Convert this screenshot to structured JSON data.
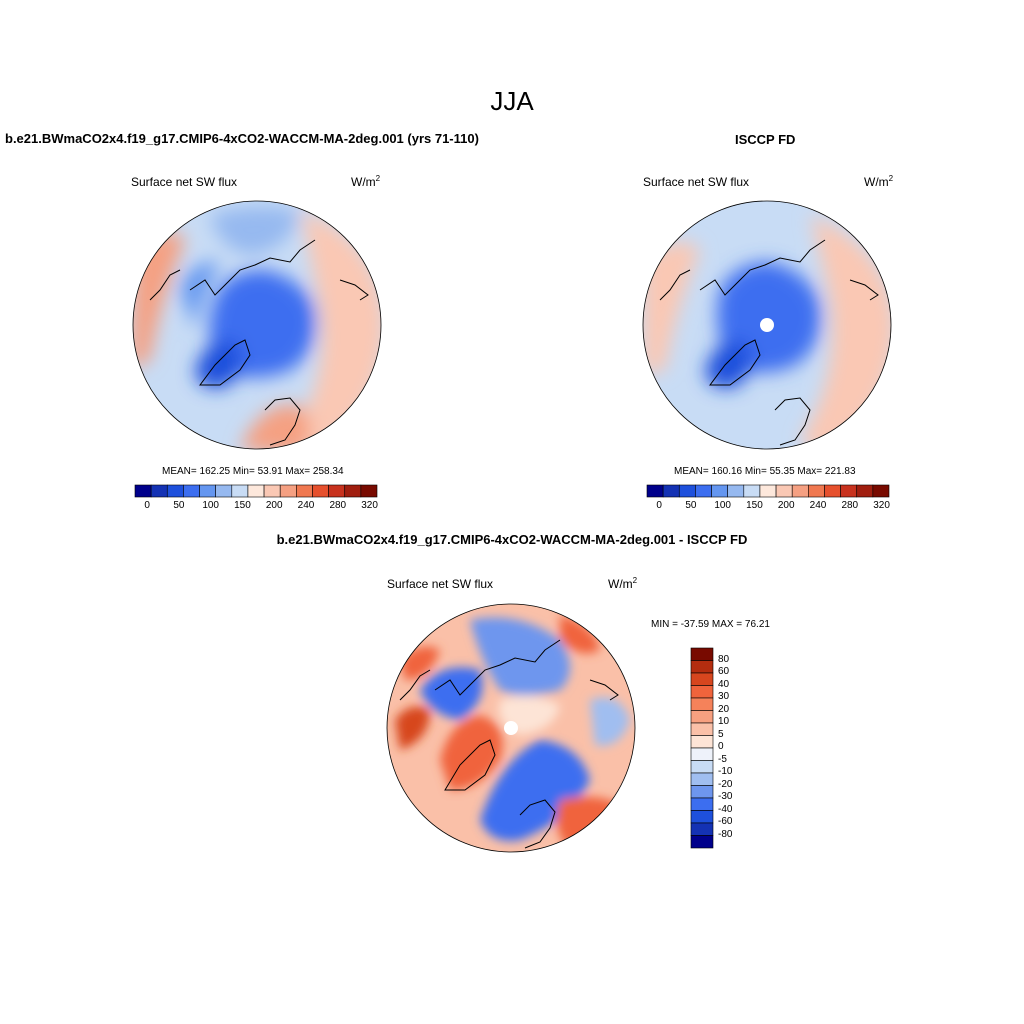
{
  "figure": {
    "title": "JJA"
  },
  "panels": [
    {
      "id": "model",
      "title": "b.e21.BWmaCO2x4.f19_g17.CMIP6-4xCO2-WACCM-MA-2deg.001 (yrs 71-110)",
      "variable": "Surface net SW flux",
      "units_base": "W/m",
      "units_exp": "2",
      "stats": "MEAN= 162.25  Min=  53.91  Max= 258.34",
      "pole_mask": false
    },
    {
      "id": "obs",
      "title": "ISCCP FD",
      "variable": "Surface net SW flux",
      "units_base": "W/m",
      "units_exp": "2",
      "stats": "MEAN= 160.16  Min=  55.35  Max= 221.83",
      "pole_mask": true
    },
    {
      "id": "diff",
      "title": "b.e21.BWmaCO2x4.f19_g17.CMIP6-4xCO2-WACCM-MA-2deg.001 - ISCCP FD",
      "variable": "Surface net SW flux",
      "units_base": "W/m",
      "units_exp": "2",
      "stats": "MIN = -37.59 MAX =  76.21",
      "pole_mask": true
    }
  ],
  "colorbar_main": {
    "labels": [
      "0",
      "50",
      "100",
      "150",
      "200",
      "240",
      "280",
      "320"
    ],
    "colors": [
      "#00008b",
      "#1432b4",
      "#1e50dc",
      "#3c6ef0",
      "#6496f0",
      "#96b9f0",
      "#c8dcf5",
      "#fde8dc",
      "#fac8b4",
      "#f5a082",
      "#f07850",
      "#e6502d",
      "#c8321e",
      "#a01e0f",
      "#780a00"
    ]
  },
  "colorbar_diff": {
    "labels": [
      "80",
      "60",
      "40",
      "30",
      "20",
      "10",
      "5",
      "0",
      "-5",
      "-10",
      "-20",
      "-30",
      "-40",
      "-60",
      "-80"
    ],
    "colors": [
      "#780a00",
      "#b42d0f",
      "#d7461e",
      "#f0643c",
      "#f5825a",
      "#f7a080",
      "#fac0a8",
      "#fde4d6",
      "#eef2fa",
      "#c8dcf5",
      "#a0bef0",
      "#6e96ee",
      "#3c6ef0",
      "#1e50dc",
      "#1432b4",
      "#00008b"
    ]
  }
}
